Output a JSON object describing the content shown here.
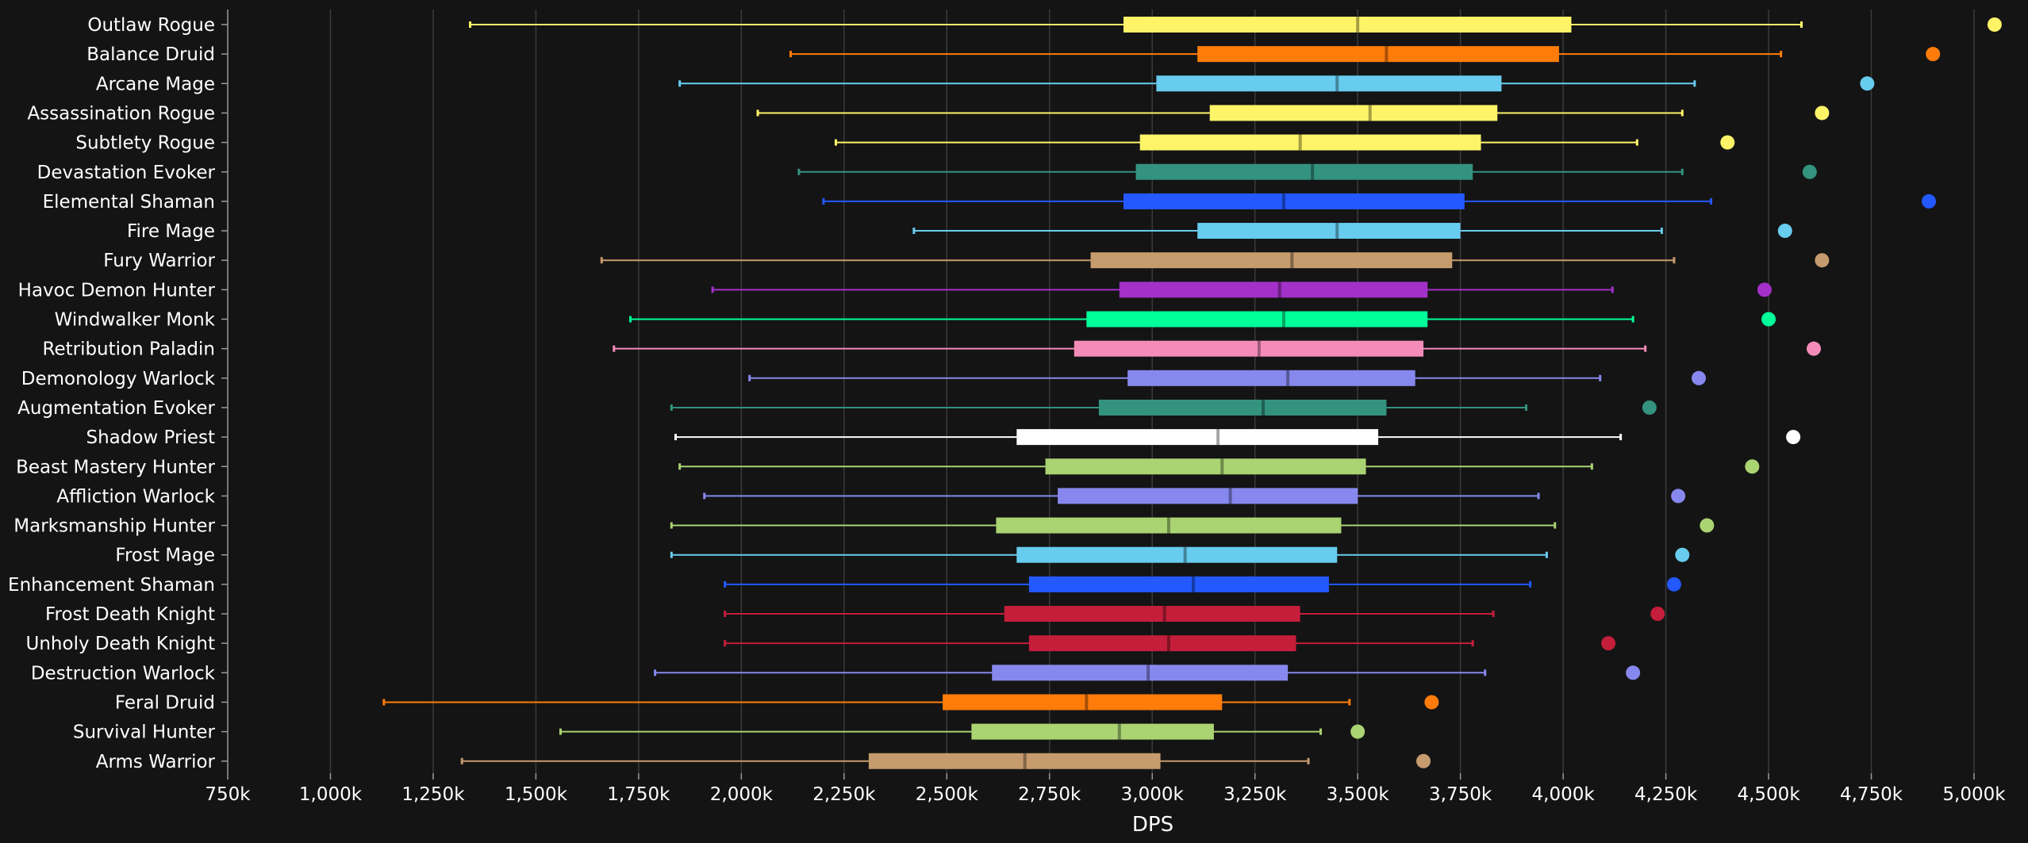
{
  "chart_data": {
    "type": "box",
    "xlabel": "DPS",
    "ylabel": "",
    "title": "",
    "xlim": [
      750,
      5000
    ],
    "unit": "k",
    "grid": true,
    "x_ticks": [
      750,
      1000,
      1250,
      1500,
      1750,
      2000,
      2250,
      2500,
      2750,
      3000,
      3250,
      3500,
      3750,
      4000,
      4250,
      4500,
      4750,
      5000
    ],
    "x_tick_labels": [
      "750k",
      "1,000k",
      "1,250k",
      "1,500k",
      "1,750k",
      "2,000k",
      "2,250k",
      "2,500k",
      "2,750k",
      "3,000k",
      "3,250k",
      "3,500k",
      "3,750k",
      "4,000k",
      "4,250k",
      "4,500k",
      "4,750k",
      "5,000k"
    ],
    "series": [
      {
        "name": "Outlaw Rogue",
        "color": "#fff468",
        "min": 1340,
        "q1": 2930,
        "median": 3500,
        "q3": 4020,
        "max": 4580,
        "outlier": 5050
      },
      {
        "name": "Balance Druid",
        "color": "#ff7c0a",
        "min": 2120,
        "q1": 3110,
        "median": 3570,
        "q3": 3990,
        "max": 4530,
        "outlier": 4900
      },
      {
        "name": "Arcane Mage",
        "color": "#68ccef",
        "min": 1850,
        "q1": 3010,
        "median": 3450,
        "q3": 3850,
        "max": 4320,
        "outlier": 4740
      },
      {
        "name": "Assassination Rogue",
        "color": "#fff468",
        "min": 2040,
        "q1": 3140,
        "median": 3530,
        "q3": 3840,
        "max": 4290,
        "outlier": 4630
      },
      {
        "name": "Subtlety Rogue",
        "color": "#fff468",
        "min": 2230,
        "q1": 2970,
        "median": 3360,
        "q3": 3800,
        "max": 4180,
        "outlier": 4400
      },
      {
        "name": "Devastation Evoker",
        "color": "#33937f",
        "min": 2140,
        "q1": 2960,
        "median": 3390,
        "q3": 3780,
        "max": 4290,
        "outlier": 4600
      },
      {
        "name": "Elemental Shaman",
        "color": "#2359ff",
        "min": 2200,
        "q1": 2930,
        "median": 3320,
        "q3": 3760,
        "max": 4360,
        "outlier": 4890
      },
      {
        "name": "Fire Mage",
        "color": "#68ccef",
        "min": 2420,
        "q1": 3110,
        "median": 3450,
        "q3": 3750,
        "max": 4240,
        "outlier": 4540
      },
      {
        "name": "Fury Warrior",
        "color": "#c69b6d",
        "min": 1660,
        "q1": 2850,
        "median": 3340,
        "q3": 3730,
        "max": 4270,
        "outlier": 4630
      },
      {
        "name": "Havoc Demon Hunter",
        "color": "#a330c9",
        "min": 1930,
        "q1": 2920,
        "median": 3310,
        "q3": 3670,
        "max": 4120,
        "outlier": 4490
      },
      {
        "name": "Windwalker Monk",
        "color": "#00ff98",
        "min": 1730,
        "q1": 2840,
        "median": 3320,
        "q3": 3670,
        "max": 4170,
        "outlier": 4500
      },
      {
        "name": "Retribution Paladin",
        "color": "#f48cba",
        "min": 1690,
        "q1": 2810,
        "median": 3260,
        "q3": 3660,
        "max": 4200,
        "outlier": 4610
      },
      {
        "name": "Demonology Warlock",
        "color": "#8788ee",
        "min": 2020,
        "q1": 2940,
        "median": 3330,
        "q3": 3640,
        "max": 4090,
        "outlier": 4330
      },
      {
        "name": "Augmentation Evoker",
        "color": "#33937f",
        "min": 1830,
        "q1": 2870,
        "median": 3270,
        "q3": 3570,
        "max": 3910,
        "outlier": 4210
      },
      {
        "name": "Shadow Priest",
        "color": "#ffffff",
        "min": 1840,
        "q1": 2670,
        "median": 3160,
        "q3": 3550,
        "max": 4140,
        "outlier": 4560
      },
      {
        "name": "Beast Mastery Hunter",
        "color": "#aad372",
        "min": 1850,
        "q1": 2740,
        "median": 3170,
        "q3": 3520,
        "max": 4070,
        "outlier": 4460
      },
      {
        "name": "Affliction Warlock",
        "color": "#8788ee",
        "min": 1910,
        "q1": 2770,
        "median": 3190,
        "q3": 3500,
        "max": 3940,
        "outlier": 4280
      },
      {
        "name": "Marksmanship Hunter",
        "color": "#aad372",
        "min": 1830,
        "q1": 2620,
        "median": 3040,
        "q3": 3460,
        "max": 3980,
        "outlier": 4350
      },
      {
        "name": "Frost Mage",
        "color": "#68ccef",
        "min": 1830,
        "q1": 2670,
        "median": 3080,
        "q3": 3450,
        "max": 3960,
        "outlier": 4290
      },
      {
        "name": "Enhancement Shaman",
        "color": "#2359ff",
        "min": 1960,
        "q1": 2700,
        "median": 3100,
        "q3": 3430,
        "max": 3920,
        "outlier": 4270
      },
      {
        "name": "Frost Death Knight",
        "color": "#c41e3a",
        "min": 1960,
        "q1": 2640,
        "median": 3030,
        "q3": 3360,
        "max": 3830,
        "outlier": 4230
      },
      {
        "name": "Unholy Death Knight",
        "color": "#c41e3a",
        "min": 1960,
        "q1": 2700,
        "median": 3040,
        "q3": 3350,
        "max": 3780,
        "outlier": 4110
      },
      {
        "name": "Destruction Warlock",
        "color": "#8788ee",
        "min": 1790,
        "q1": 2610,
        "median": 2990,
        "q3": 3330,
        "max": 3810,
        "outlier": 4170
      },
      {
        "name": "Feral Druid",
        "color": "#ff7c0a",
        "min": 1130,
        "q1": 2490,
        "median": 2840,
        "q3": 3170,
        "max": 3480,
        "outlier": 3680
      },
      {
        "name": "Survival Hunter",
        "color": "#aad372",
        "min": 1560,
        "q1": 2560,
        "median": 2920,
        "q3": 3150,
        "max": 3410,
        "outlier": 3500
      },
      {
        "name": "Arms Warrior",
        "color": "#c69b6d",
        "min": 1320,
        "q1": 2310,
        "median": 2690,
        "q3": 3020,
        "max": 3380,
        "outlier": 3660
      }
    ]
  }
}
